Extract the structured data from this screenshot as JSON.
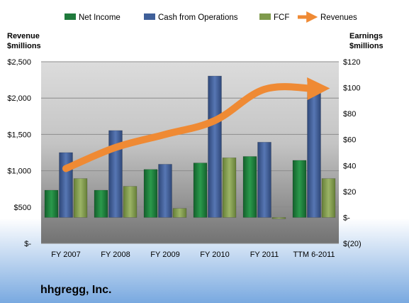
{
  "chart_data": {
    "type": "bar",
    "categories": [
      "FY 2007",
      "FY 2008",
      "FY 2009",
      "FY 2010",
      "FY 2011",
      "TTM 6-2011"
    ],
    "series": [
      {
        "name": "Net Income",
        "axis": "right",
        "values": [
          21,
          21,
          37,
          42,
          47,
          44
        ],
        "color": "#1f7a3c"
      },
      {
        "name": "Cash from Operations",
        "axis": "right",
        "values": [
          50,
          67,
          41,
          109,
          58,
          98
        ],
        "color": "#3f5f99"
      },
      {
        "name": "FCF",
        "axis": "right",
        "values": [
          30,
          24,
          7,
          46,
          -1,
          30
        ],
        "color": "#7f9a4c"
      },
      {
        "name": "Revenues",
        "type": "line",
        "axis": "left",
        "values": [
          1030,
          1320,
          1500,
          1690,
          2120,
          2130
        ],
        "color": "#ef8a34"
      }
    ],
    "left_axis": {
      "label_line1": "Revenue",
      "label_line2": "$millions",
      "ticks": [
        "$-",
        "$500",
        "$1,000",
        "$1,500",
        "$2,000",
        "$2,500"
      ],
      "tick_values": [
        0,
        500,
        1000,
        1500,
        2000,
        2500
      ],
      "ylim": [
        0,
        2500
      ]
    },
    "right_axis": {
      "label_line1": "Earnings",
      "label_line2": "$millions",
      "ticks": [
        "$(20)",
        "$-",
        "$20",
        "$40",
        "$60",
        "$80",
        "$100",
        "$120"
      ],
      "tick_values": [
        -20,
        0,
        20,
        40,
        60,
        80,
        100,
        120
      ],
      "ylim": [
        -20,
        120
      ]
    },
    "legend_position": "top",
    "grid": true
  },
  "company_name": "hhgregg, Inc."
}
